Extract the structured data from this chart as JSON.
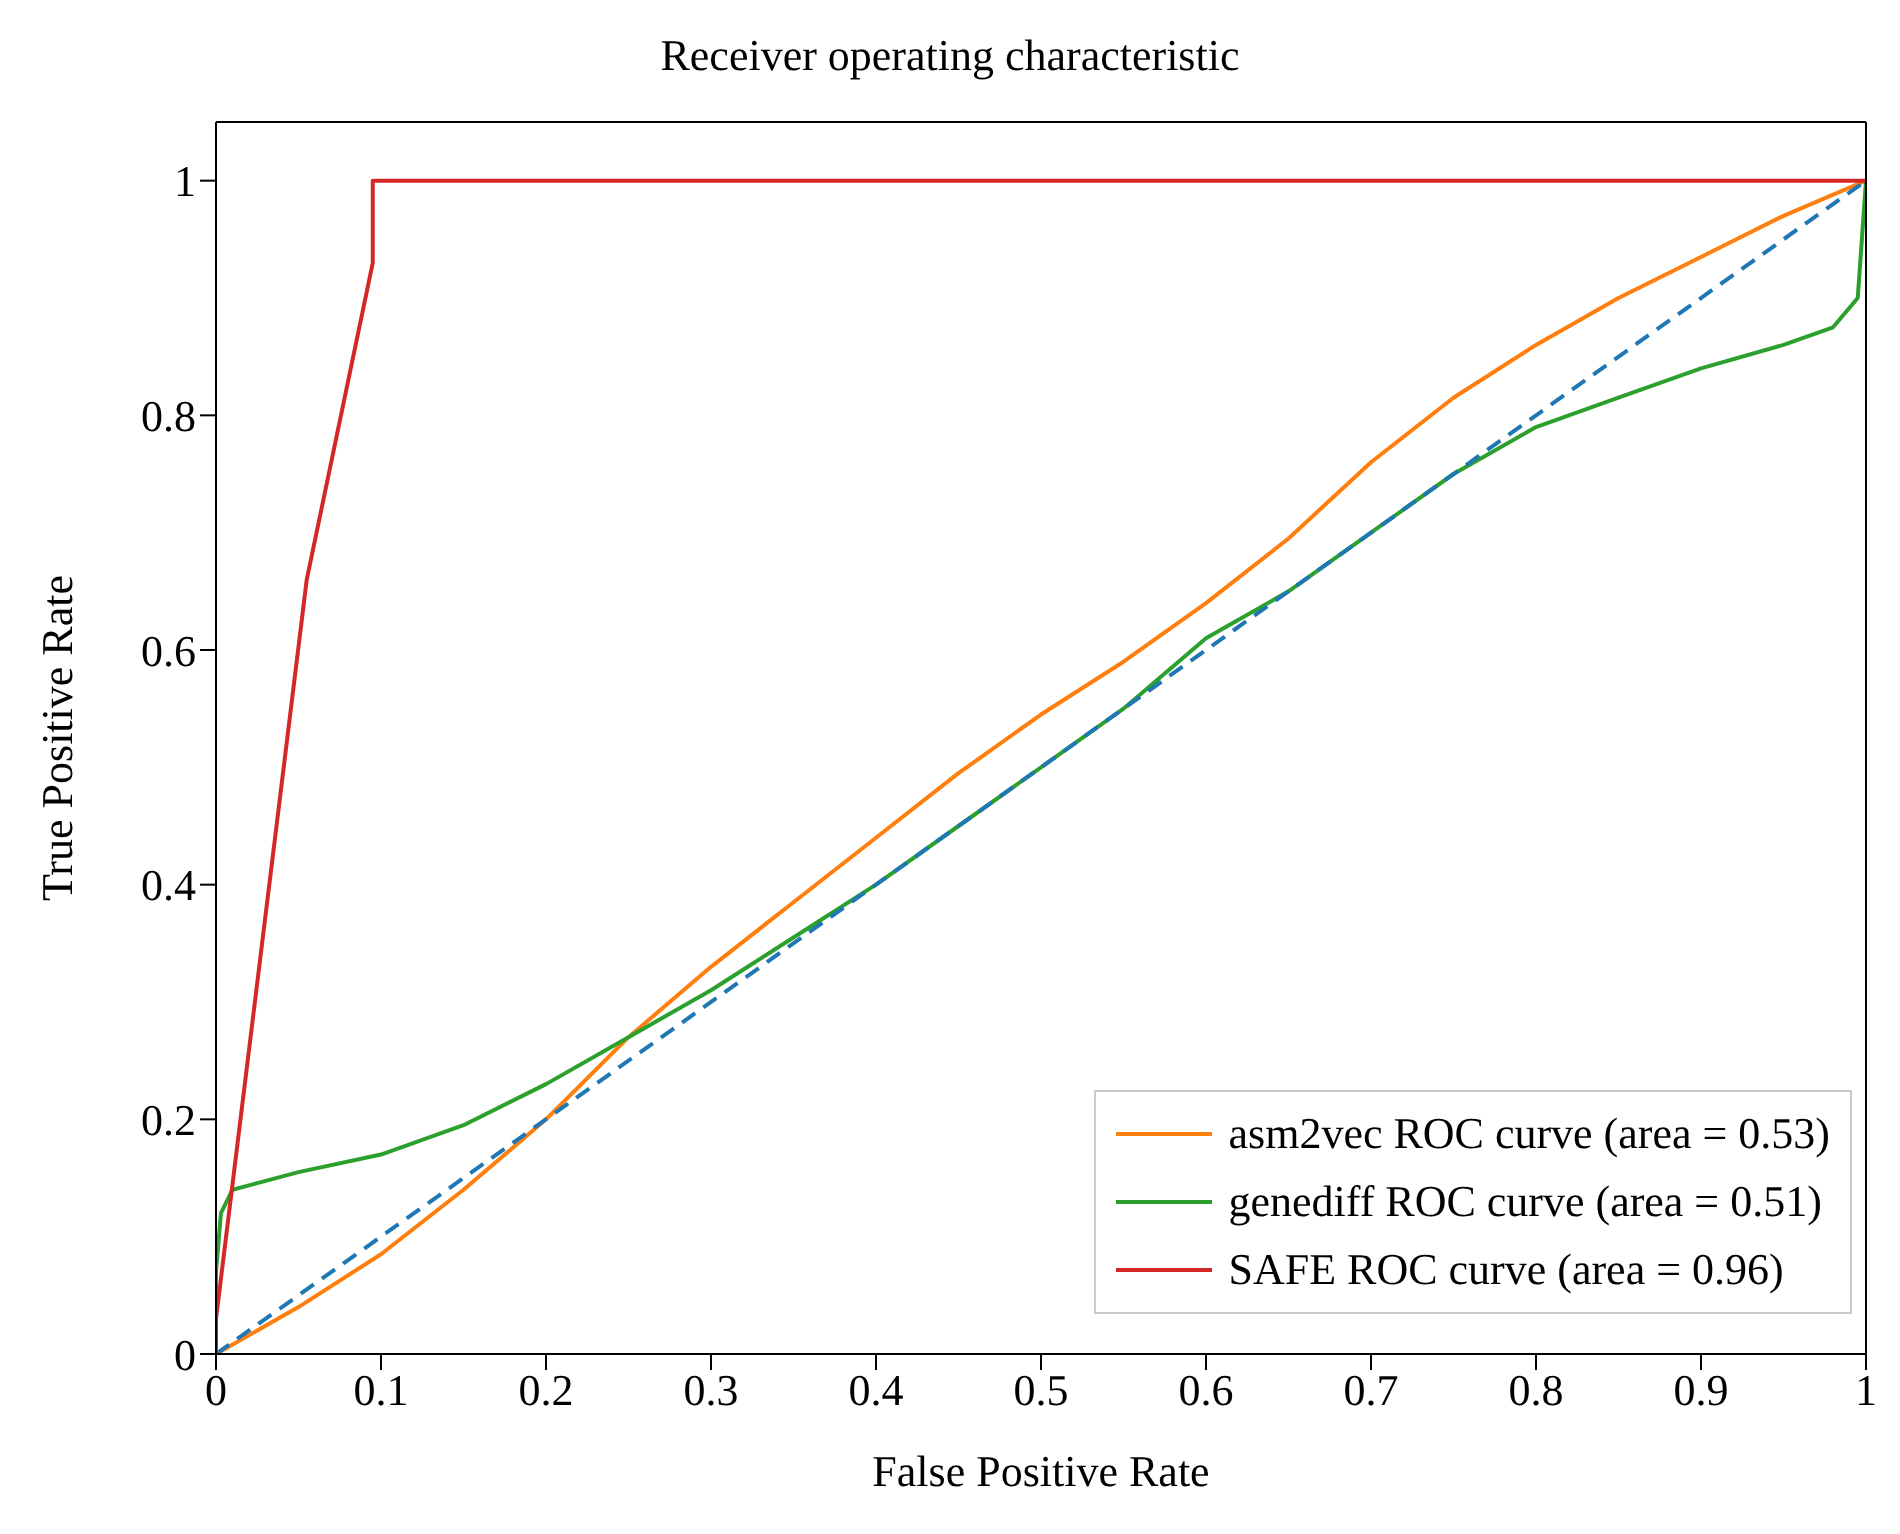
{
  "chart_data": {
    "type": "line",
    "title": "Receiver operating characteristic",
    "xlabel": "False Positive Rate",
    "ylabel": "True Positive Rate",
    "xlim": [
      0,
      1
    ],
    "ylim": [
      0,
      1.05
    ],
    "xticks": [
      0,
      0.1,
      0.2,
      0.3,
      0.4,
      0.5,
      0.6,
      0.7,
      0.8,
      0.9,
      1
    ],
    "yticks": [
      0,
      0.2,
      0.4,
      0.6,
      0.8,
      1
    ],
    "grid": false,
    "legend": "bottom right",
    "marker": "none",
    "series": [
      {
        "name": "asm2vec ROC curve (area = 0.53)",
        "color": "#ff7f0e",
        "line_style": "solid",
        "x": [
          0,
          0.05,
          0.1,
          0.15,
          0.2,
          0.25,
          0.3,
          0.35,
          0.4,
          0.45,
          0.5,
          0.55,
          0.6,
          0.65,
          0.7,
          0.75,
          0.8,
          0.85,
          0.9,
          0.95,
          1
        ],
        "values": [
          0,
          0.04,
          0.085,
          0.14,
          0.2,
          0.27,
          0.33,
          0.385,
          0.44,
          0.495,
          0.545,
          0.59,
          0.64,
          0.695,
          0.76,
          0.815,
          0.86,
          0.9,
          0.935,
          0.97,
          1
        ]
      },
      {
        "name": "genediff ROC curve (area = 0.51)",
        "color": "#2ca02c",
        "line_style": "solid",
        "x": [
          0,
          0,
          0.003,
          0.01,
          0.05,
          0.1,
          0.15,
          0.2,
          0.25,
          0.3,
          0.35,
          0.4,
          0.45,
          0.5,
          0.55,
          0.6,
          0.65,
          0.7,
          0.75,
          0.8,
          0.85,
          0.9,
          0.95,
          0.98,
          0.995,
          1
        ],
        "values": [
          0,
          0.07,
          0.12,
          0.14,
          0.155,
          0.17,
          0.195,
          0.23,
          0.27,
          0.31,
          0.355,
          0.4,
          0.45,
          0.5,
          0.55,
          0.61,
          0.65,
          0.7,
          0.75,
          0.79,
          0.815,
          0.84,
          0.86,
          0.875,
          0.9,
          1
        ]
      },
      {
        "name": "SAFE ROC curve (area = 0.96)",
        "color": "#d62728",
        "line_style": "solid",
        "x": [
          0,
          0,
          0.055,
          0.095,
          0.095,
          1
        ],
        "values": [
          0,
          0.03,
          0.66,
          0.93,
          1,
          1
        ]
      },
      {
        "color": "#1f77b4",
        "line_style": "dashed",
        "x": [
          0,
          1
        ],
        "values": [
          0,
          1
        ]
      }
    ]
  }
}
